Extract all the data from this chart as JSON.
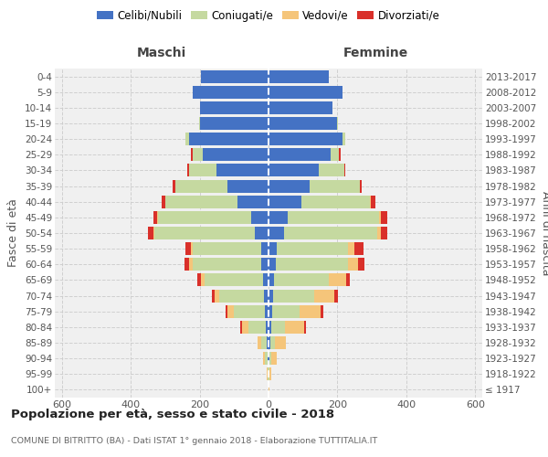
{
  "age_groups": [
    "0-4",
    "5-9",
    "10-14",
    "15-19",
    "20-24",
    "25-29",
    "30-34",
    "35-39",
    "40-44",
    "45-49",
    "50-54",
    "55-59",
    "60-64",
    "65-69",
    "70-74",
    "75-79",
    "80-84",
    "85-89",
    "90-94",
    "95-99",
    "100+"
  ],
  "birth_years": [
    "2013-2017",
    "2008-2012",
    "2003-2007",
    "1998-2002",
    "1993-1997",
    "1988-1992",
    "1983-1987",
    "1978-1982",
    "1973-1977",
    "1968-1972",
    "1963-1967",
    "1958-1962",
    "1953-1957",
    "1948-1952",
    "1943-1947",
    "1938-1942",
    "1933-1937",
    "1928-1932",
    "1923-1927",
    "1918-1922",
    "≤ 1917"
  ],
  "male_celibe": [
    195,
    220,
    200,
    200,
    230,
    190,
    150,
    120,
    90,
    50,
    40,
    20,
    20,
    15,
    12,
    10,
    8,
    4,
    2,
    0,
    0
  ],
  "male_coniugato": [
    0,
    0,
    0,
    2,
    10,
    30,
    80,
    150,
    210,
    270,
    290,
    200,
    200,
    170,
    130,
    90,
    50,
    18,
    8,
    2,
    0
  ],
  "male_vedovo": [
    0,
    0,
    0,
    0,
    0,
    0,
    0,
    0,
    0,
    2,
    3,
    5,
    10,
    12,
    15,
    20,
    20,
    10,
    5,
    2,
    0
  ],
  "male_divorziato": [
    0,
    0,
    0,
    0,
    0,
    5,
    5,
    8,
    10,
    12,
    18,
    15,
    15,
    10,
    8,
    5,
    5,
    0,
    0,
    0,
    0
  ],
  "female_celibe": [
    175,
    215,
    185,
    200,
    215,
    180,
    145,
    120,
    95,
    55,
    45,
    25,
    20,
    15,
    12,
    10,
    8,
    4,
    3,
    0,
    0
  ],
  "female_coniugata": [
    0,
    0,
    0,
    2,
    8,
    25,
    75,
    145,
    200,
    265,
    270,
    205,
    210,
    160,
    120,
    80,
    40,
    15,
    5,
    2,
    0
  ],
  "female_vedova": [
    0,
    0,
    0,
    0,
    0,
    0,
    0,
    0,
    2,
    5,
    10,
    20,
    30,
    50,
    60,
    62,
    55,
    32,
    15,
    5,
    3
  ],
  "female_divorziata": [
    0,
    0,
    0,
    0,
    0,
    3,
    3,
    5,
    12,
    20,
    20,
    25,
    18,
    12,
    10,
    8,
    5,
    0,
    0,
    0,
    0
  ],
  "color_celibe": "#4472c4",
  "color_coniugato": "#c5d9a0",
  "color_vedovo": "#f5c57a",
  "color_divorziato": "#d9302a",
  "title": "Popolazione per età, sesso e stato civile - 2018",
  "subtitle": "COMUNE DI BITRITTO (BA) - Dati ISTAT 1° gennaio 2018 - Elaborazione TUTTITALIA.IT",
  "label_maschi": "Maschi",
  "label_femmine": "Femmine",
  "ylabel_left": "Fasce di età",
  "ylabel_right": "Anni di nascita",
  "xlim": 620,
  "bg_color": "#f0f0f0",
  "grid_color": "#cccccc",
  "legend_labels": [
    "Celibi/Nubili",
    "Coniugati/e",
    "Vedovi/e",
    "Divorziati/e"
  ]
}
